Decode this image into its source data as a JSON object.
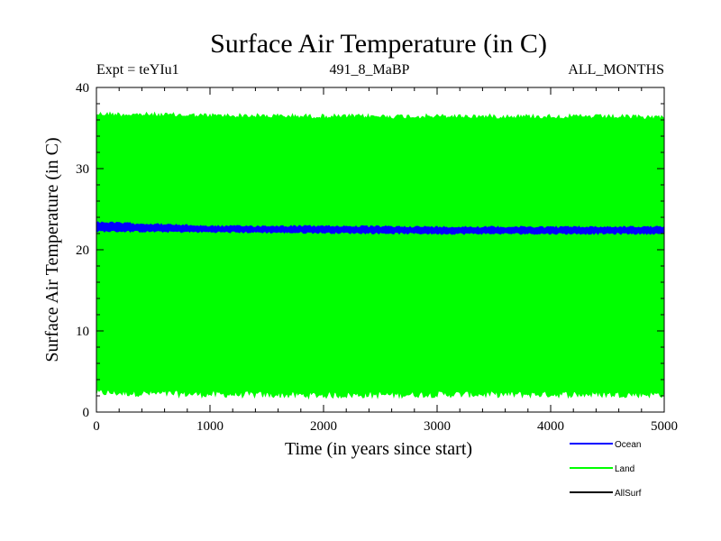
{
  "chart_data": {
    "type": "line",
    "title": "Surface Air Temperature (in C)",
    "subtitle_left": "Expt = teYIu1",
    "subtitle_center": "491_8_MaBP",
    "subtitle_right": "ALL_MONTHS",
    "xlabel": "Time (in years since start)",
    "ylabel": "Surface Air Temperature (in C)",
    "xlim": [
      0,
      5000
    ],
    "ylim": [
      0,
      40
    ],
    "xticks": [
      0,
      1000,
      2000,
      3000,
      4000,
      5000
    ],
    "yticks": [
      0,
      10,
      20,
      30,
      40
    ],
    "series": [
      {
        "name": "Land",
        "color": "#00ff00",
        "x": [
          0,
          1000,
          2000,
          3000,
          4000,
          5000
        ],
        "upper": [
          37.0,
          36.8,
          36.7,
          36.7,
          36.7,
          36.6
        ],
        "lower": [
          2.0,
          1.8,
          1.7,
          1.8,
          1.8,
          1.8
        ]
      },
      {
        "name": "Ocean",
        "color": "#0000ff",
        "x": [
          0,
          1000,
          2000,
          3000,
          4000,
          5000
        ],
        "upper": [
          23.5,
          23.0,
          23.0,
          22.9,
          22.9,
          22.9
        ],
        "lower": [
          22.2,
          22.1,
          22.0,
          21.9,
          21.9,
          21.9
        ]
      },
      {
        "name": "AllSurf",
        "color": "#000000",
        "x": [],
        "upper": [],
        "lower": []
      }
    ]
  }
}
